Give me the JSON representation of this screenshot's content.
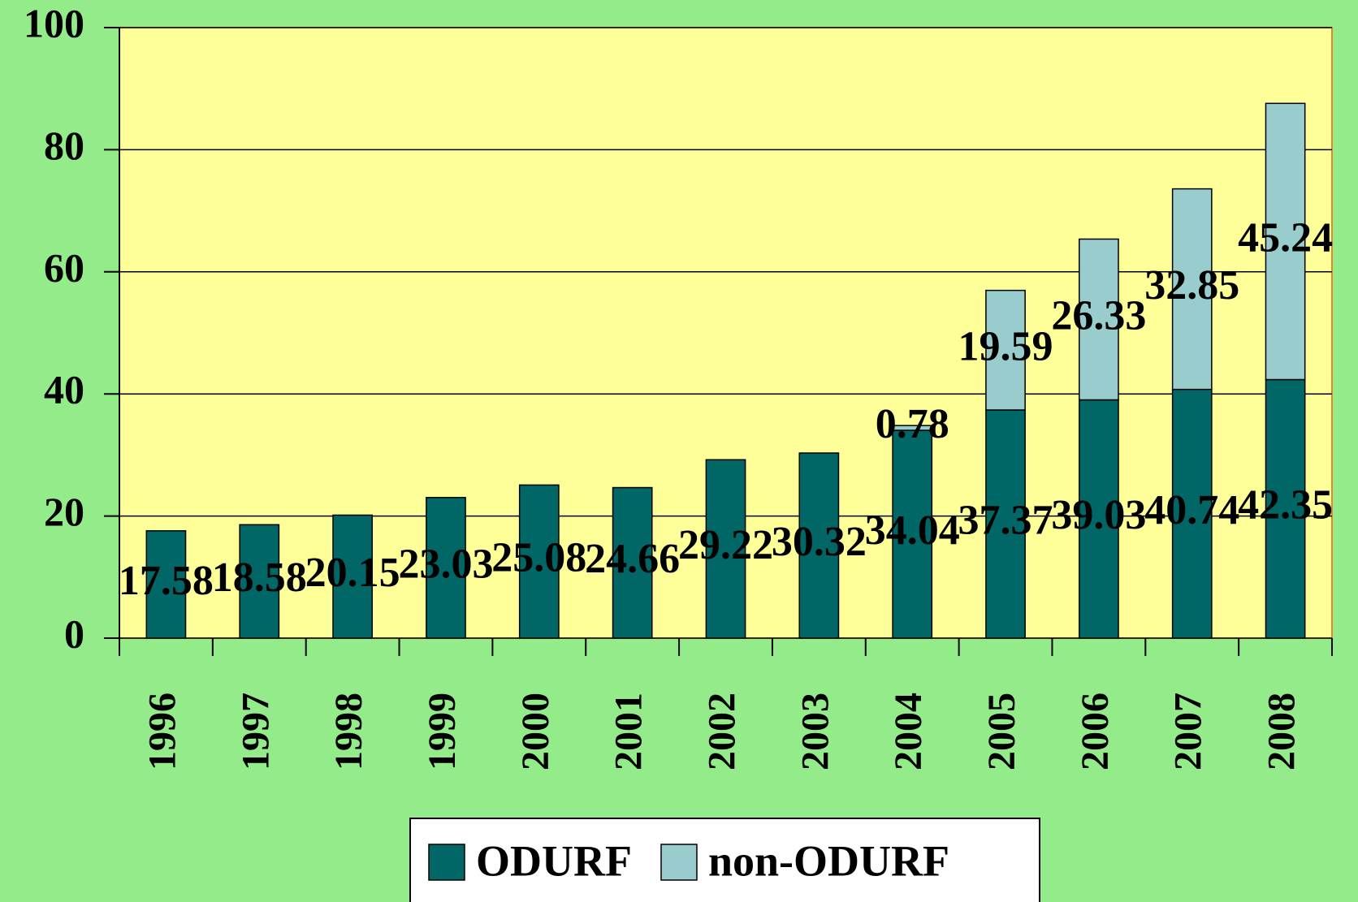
{
  "chart_data": {
    "type": "stacked-bar",
    "categories": [
      "1996",
      "1997",
      "1998",
      "1999",
      "2000",
      "2001",
      "2002",
      "2003",
      "2004",
      "2005",
      "2006",
      "2007",
      "2008"
    ],
    "series": [
      {
        "name": "ODURF",
        "color": "#006666",
        "values": [
          17.58,
          18.58,
          20.15,
          23.03,
          25.08,
          24.66,
          29.22,
          30.32,
          34.04,
          37.37,
          39.03,
          40.74,
          42.35
        ]
      },
      {
        "name": "non-ODURF",
        "color": "#99cccc",
        "values": [
          null,
          null,
          null,
          null,
          null,
          null,
          null,
          null,
          0.78,
          19.59,
          26.33,
          32.85,
          45.24
        ]
      }
    ],
    "ylim": [
      0,
      100
    ],
    "yticks": [
      0,
      20,
      40,
      60,
      80,
      100
    ],
    "grid": true,
    "legend": "bottom"
  }
}
